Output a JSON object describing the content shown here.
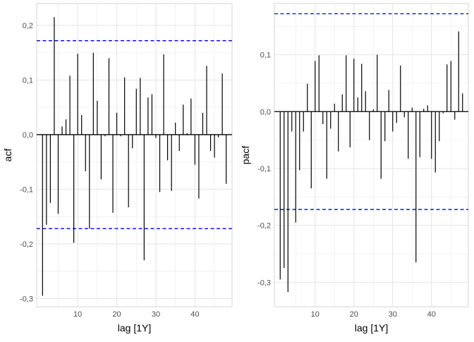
{
  "chart_data": [
    {
      "type": "bar",
      "panel": "acf",
      "xlabel": "lag [1Y]",
      "ylabel": "acf",
      "xlim": [
        -0.5,
        49.5
      ],
      "ylim": [
        -0.315,
        0.24
      ],
      "xticks": [
        10,
        20,
        30,
        40
      ],
      "yticks": [
        -0.3,
        -0.2,
        -0.1,
        0.0,
        0.1,
        0.2
      ],
      "ytick_labels": [
        "-0,3",
        "-0,2",
        "-0,1",
        "0,0",
        "0,1",
        "0,2"
      ],
      "xtick_labels": [
        "10",
        "20",
        "30",
        "40"
      ],
      "confidence_bound": 0.172,
      "line_color": "#000000",
      "bound_color": "#0000ff",
      "lags": [
        1,
        2,
        3,
        4,
        5,
        6,
        7,
        8,
        9,
        10,
        11,
        12,
        13,
        14,
        15,
        16,
        17,
        18,
        19,
        20,
        21,
        22,
        23,
        24,
        25,
        26,
        27,
        28,
        29,
        30,
        31,
        32,
        33,
        34,
        35,
        36,
        37,
        38,
        39,
        40,
        41,
        42,
        43,
        44,
        45,
        46,
        47,
        48
      ],
      "values": [
        -0.295,
        -0.165,
        -0.125,
        0.215,
        -0.145,
        0.015,
        0.028,
        0.108,
        -0.198,
        0.148,
        0.036,
        -0.067,
        -0.172,
        0.15,
        0.062,
        -0.082,
        -0.003,
        0.14,
        -0.143,
        0.04,
        -0.003,
        0.105,
        -0.133,
        -0.025,
        0.084,
        0.104,
        -0.23,
        0.068,
        0.074,
        -0.006,
        -0.105,
        0.147,
        -0.047,
        -0.103,
        0.022,
        -0.03,
        0.055,
        0.003,
        0.066,
        -0.055,
        -0.117,
        0.04,
        0.126,
        -0.03,
        -0.042,
        -0.005,
        0.112,
        -0.09
      ]
    },
    {
      "type": "bar",
      "panel": "pacf",
      "xlabel": "lag [1Y]",
      "ylabel": "pacf",
      "xlim": [
        -0.5,
        49.5
      ],
      "ylim": [
        -0.343,
        0.19
      ],
      "xticks": [
        10,
        20,
        30,
        40
      ],
      "yticks": [
        -0.3,
        -0.2,
        -0.1,
        0.0,
        0.1
      ],
      "ytick_labels": [
        "-0,3",
        "-0,2",
        "-0,1",
        "0,0",
        "0,1"
      ],
      "xtick_labels": [
        "10",
        "20",
        "30",
        "40"
      ],
      "confidence_bound": 0.172,
      "line_color": "#000000",
      "bound_color": "#0000ff",
      "lags": [
        1,
        2,
        3,
        4,
        5,
        6,
        7,
        8,
        9,
        10,
        11,
        12,
        13,
        14,
        15,
        16,
        17,
        18,
        19,
        20,
        21,
        22,
        23,
        24,
        25,
        26,
        27,
        28,
        29,
        30,
        31,
        32,
        33,
        34,
        35,
        36,
        37,
        38,
        39,
        40,
        41,
        42,
        43,
        44,
        45,
        46,
        47,
        48
      ],
      "values": [
        -0.295,
        -0.275,
        -0.317,
        -0.035,
        -0.195,
        -0.103,
        -0.035,
        0.049,
        -0.135,
        0.089,
        0.099,
        -0.022,
        -0.118,
        -0.03,
        0.014,
        -0.07,
        0.03,
        0.099,
        -0.063,
        0.093,
        0.025,
        0.084,
        0.036,
        -0.05,
        0.004,
        0.1,
        -0.118,
        -0.052,
        0.038,
        -0.035,
        -0.02,
        0.081,
        -0.01,
        -0.083,
        0.007,
        -0.265,
        -0.08,
        0.005,
        0.011,
        -0.083,
        -0.107,
        -0.052,
        -0.003,
        0.083,
        0.089,
        -0.014,
        0.141,
        0.032
      ]
    }
  ]
}
